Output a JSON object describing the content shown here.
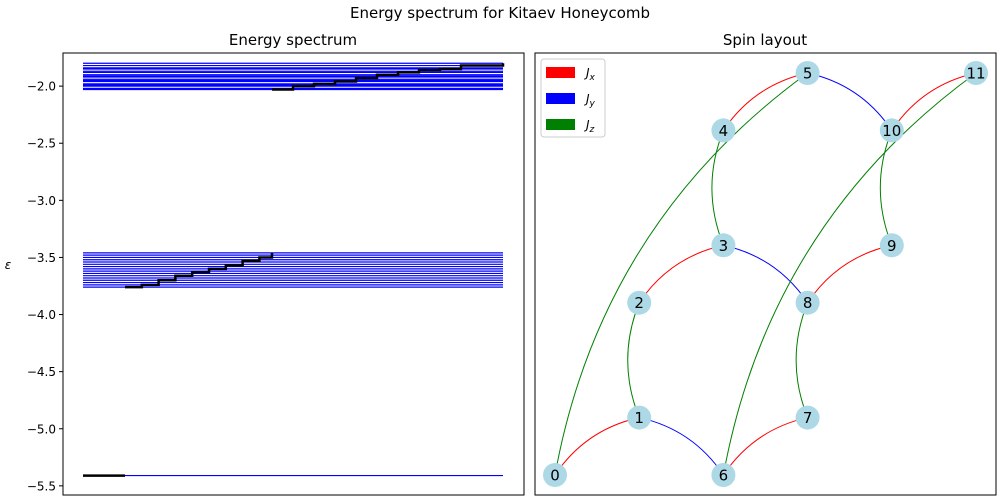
{
  "figure": {
    "suptitle": "Energy spectrum for Kitaev Honeycomb"
  },
  "chart_data": [
    {
      "type": "line",
      "title": "Energy spectrum",
      "ylabel": "ε",
      "xlabel": "",
      "ylim": [
        -5.58,
        -1.71
      ],
      "y_ticks": [
        -2.0,
        -2.5,
        -3.0,
        -3.5,
        -4.0,
        -4.5,
        -5.0,
        -5.5
      ],
      "y_tick_labels": [
        "−2.0",
        "−2.5",
        "−3.0",
        "−3.5",
        "−4.0",
        "−4.5",
        "−5.0",
        "−5.5"
      ],
      "x_ticks_visible": false,
      "level_color": "#0000ff",
      "step_color": "#000000",
      "levels": {
        "upper_band": [
          -1.8,
          -1.82,
          -1.84,
          -1.85,
          -1.87,
          -1.88,
          -1.9,
          -1.91,
          -1.92,
          -1.94,
          -1.95,
          -1.96,
          -1.98,
          -1.99,
          -2.0,
          -2.02,
          -2.03
        ],
        "middle_band": [
          -3.46,
          -3.48,
          -3.5,
          -3.52,
          -3.54,
          -3.56,
          -3.58,
          -3.6,
          -3.62,
          -3.64,
          -3.66,
          -3.68,
          -3.7,
          -3.72,
          -3.74,
          -3.76
        ],
        "ground": [
          -5.41
        ]
      },
      "step_series": [
        {
          "label": "ground",
          "x_fraction": [
            0.0,
            0.1
          ],
          "y": [
            -5.41,
            -5.41
          ]
        },
        {
          "label": "middle",
          "x_fraction": [
            0.1,
            0.14,
            0.18,
            0.22,
            0.26,
            0.3,
            0.34,
            0.38,
            0.42,
            0.45
          ],
          "y": [
            -3.76,
            -3.74,
            -3.7,
            -3.66,
            -3.63,
            -3.6,
            -3.57,
            -3.53,
            -3.5,
            -3.46
          ]
        },
        {
          "label": "upper",
          "x_fraction": [
            0.45,
            0.5,
            0.55,
            0.6,
            0.65,
            0.7,
            0.75,
            0.8,
            0.85,
            0.9,
            1.0
          ],
          "y": [
            -2.03,
            -2.0,
            -1.98,
            -1.96,
            -1.93,
            -1.9,
            -1.88,
            -1.86,
            -1.85,
            -1.82,
            -1.8
          ]
        }
      ]
    },
    {
      "type": "diagram",
      "title": "Spin layout",
      "legend": {
        "placement": "top-left",
        "entries": [
          {
            "label": "J",
            "sub": "x",
            "color": "#ff0000"
          },
          {
            "label": "J",
            "sub": "y",
            "color": "#0000ff"
          },
          {
            "label": "J",
            "sub": "z",
            "color": "#008000"
          }
        ]
      },
      "node_color": "#add8e6",
      "nodes": [
        {
          "id": "0",
          "x": 0,
          "y": 0
        },
        {
          "id": "1",
          "x": 1,
          "y": 1
        },
        {
          "id": "2",
          "x": 1,
          "y": 3
        },
        {
          "id": "3",
          "x": 2,
          "y": 4
        },
        {
          "id": "4",
          "x": 2,
          "y": 6
        },
        {
          "id": "5",
          "x": 3,
          "y": 7
        },
        {
          "id": "6",
          "x": 2,
          "y": 0
        },
        {
          "id": "7",
          "x": 3,
          "y": 1
        },
        {
          "id": "8",
          "x": 3,
          "y": 3
        },
        {
          "id": "9",
          "x": 4,
          "y": 4
        },
        {
          "id": "10",
          "x": 4,
          "y": 6
        },
        {
          "id": "11",
          "x": 5,
          "y": 7
        }
      ],
      "edges": [
        {
          "source": "0",
          "target": "1",
          "kind": "x"
        },
        {
          "source": "2",
          "target": "3",
          "kind": "x"
        },
        {
          "source": "4",
          "target": "5",
          "kind": "x"
        },
        {
          "source": "6",
          "target": "7",
          "kind": "x"
        },
        {
          "source": "8",
          "target": "9",
          "kind": "x"
        },
        {
          "source": "10",
          "target": "11",
          "kind": "x"
        },
        {
          "source": "1",
          "target": "6",
          "kind": "y"
        },
        {
          "source": "3",
          "target": "8",
          "kind": "y"
        },
        {
          "source": "5",
          "target": "10",
          "kind": "y"
        },
        {
          "source": "1",
          "target": "2",
          "kind": "z"
        },
        {
          "source": "3",
          "target": "4",
          "kind": "z"
        },
        {
          "source": "7",
          "target": "8",
          "kind": "z"
        },
        {
          "source": "9",
          "target": "10",
          "kind": "z"
        },
        {
          "source": "0",
          "target": "5",
          "kind": "z"
        },
        {
          "source": "6",
          "target": "11",
          "kind": "z"
        }
      ]
    }
  ]
}
